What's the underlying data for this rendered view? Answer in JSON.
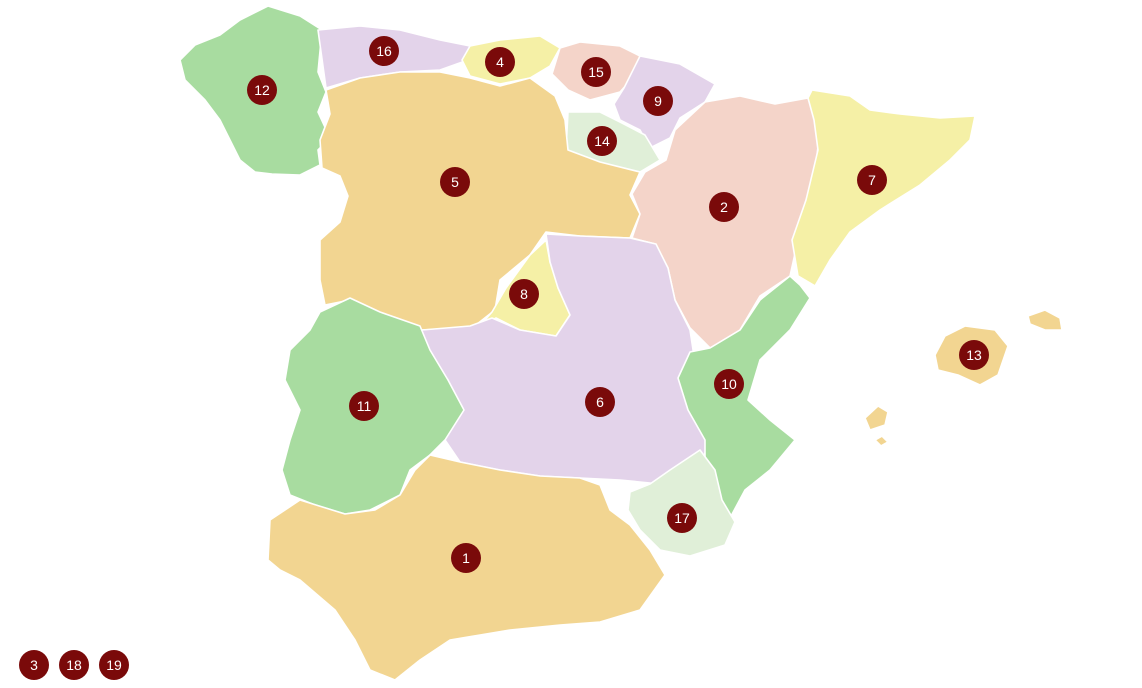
{
  "colors": {
    "sand": "#f2d591",
    "lilac": "#e3d3ea",
    "mint": "#a8dca0",
    "salmon": "#f4d4c9",
    "lemon": "#f5f0a6",
    "pale_green": "#e0efd8",
    "marker": "#7a0a0a",
    "marker_text": "#ffffff"
  },
  "markers": [
    "1",
    "2",
    "3",
    "4",
    "5",
    "6",
    "7",
    "8",
    "9",
    "10",
    "11",
    "12",
    "13",
    "14",
    "15",
    "16",
    "17",
    "18",
    "19"
  ],
  "legend_markers": [
    "3",
    "18",
    "19"
  ]
}
